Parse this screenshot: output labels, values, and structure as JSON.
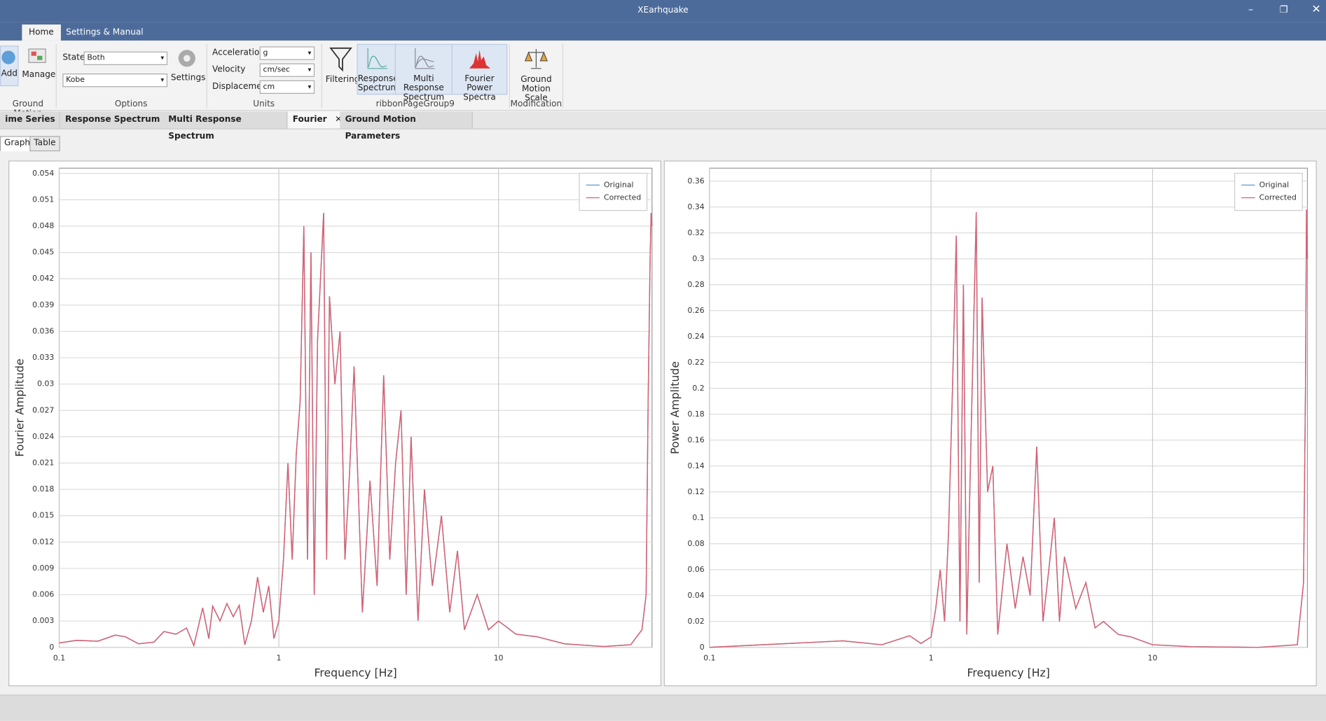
{
  "window": {
    "title": "XEarhquake"
  },
  "ribbon_tabs": [
    "Home",
    "Settings & Manual"
  ],
  "ribbon": {
    "ground_motion": {
      "title": "Ground Motion",
      "add": "Add",
      "manage": "Manage"
    },
    "options": {
      "title": "Options",
      "state_label": "State",
      "state_value": "Both",
      "record": "Kobe",
      "settings": "Settings"
    },
    "units": {
      "title": "Units",
      "acceleration_label": "Acceleration",
      "acceleration": "g",
      "velocity_label": "Velocity",
      "velocity": "cm/sec",
      "displacement_label": "Displacement",
      "displacement": "cm"
    },
    "group9": {
      "title": "ribbonPageGroup9",
      "filtering": "Filtering",
      "response": "Response Spectrum",
      "multi": "Multi Response Spectrum",
      "fourier": "Fourier Power Spectra"
    },
    "modification": {
      "title": "Modification",
      "scale": "Ground Motion Scale"
    }
  },
  "doc_tabs": [
    "ime Series",
    "Response Spectrum",
    "Multi Response Spectrum",
    "Fourier",
    "Ground Motion Parameters"
  ],
  "view_tabs": [
    "Graph",
    "Table"
  ],
  "chart_data": [
    {
      "type": "line",
      "x_label": "Frequency [Hz]",
      "y_label": "Fourier Amplitude",
      "xscale": "log",
      "grid": true,
      "legend": "top-right",
      "xlim": [
        0.1,
        50
      ],
      "xticks": [
        0.1,
        1,
        10
      ],
      "ylim": [
        0,
        0.0546
      ],
      "yticks": [
        0,
        0.003,
        0.006,
        0.009,
        0.012,
        0.015,
        0.018,
        0.021,
        0.024,
        0.027,
        0.03,
        0.033,
        0.036,
        0.039,
        0.042,
        0.045,
        0.048,
        0.051,
        0.054
      ],
      "x": [
        0.1,
        0.12,
        0.15,
        0.18,
        0.2,
        0.23,
        0.27,
        0.3,
        0.34,
        0.38,
        0.41,
        0.45,
        0.48,
        0.5,
        0.54,
        0.58,
        0.62,
        0.66,
        0.7,
        0.75,
        0.8,
        0.85,
        0.9,
        0.95,
        1.0,
        1.05,
        1.1,
        1.15,
        1.2,
        1.25,
        1.3,
        1.35,
        1.4,
        1.45,
        1.5,
        1.6,
        1.65,
        1.7,
        1.8,
        1.9,
        2.0,
        2.1,
        2.2,
        2.4,
        2.6,
        2.8,
        3.0,
        3.2,
        3.4,
        3.6,
        3.8,
        4.0,
        4.3,
        4.6,
        5.0,
        5.5,
        6.0,
        6.5,
        7.0,
        8.0,
        9.0,
        10,
        12,
        15,
        20,
        30,
        40,
        45,
        47,
        48,
        49,
        49.5,
        50
      ],
      "series": [
        {
          "name": "Original",
          "color": "#5b9bd5",
          "values": [
            0.0005,
            0.0008,
            0.0007,
            0.0014,
            0.0012,
            0.0004,
            0.0006,
            0.0018,
            0.0015,
            0.0022,
            0.0002,
            0.0045,
            0.001,
            0.0047,
            0.003,
            0.005,
            0.0035,
            0.0048,
            0.0003,
            0.003,
            0.008,
            0.004,
            0.007,
            0.001,
            0.003,
            0.01,
            0.021,
            0.01,
            0.022,
            0.028,
            0.048,
            0.01,
            0.045,
            0.006,
            0.035,
            0.0495,
            0.01,
            0.04,
            0.03,
            0.036,
            0.01,
            0.02,
            0.032,
            0.004,
            0.019,
            0.007,
            0.031,
            0.01,
            0.021,
            0.027,
            0.006,
            0.024,
            0.003,
            0.018,
            0.007,
            0.015,
            0.004,
            0.011,
            0.002,
            0.006,
            0.002,
            0.003,
            0.0015,
            0.0012,
            0.0004,
            0.0001,
            0.0003,
            0.002,
            0.006,
            0.028,
            0.044,
            0.0495,
            0.048
          ]
        },
        {
          "name": "Corrected",
          "color": "#d9606f",
          "values": [
            0.0005,
            0.0008,
            0.0007,
            0.0014,
            0.0012,
            0.0004,
            0.0006,
            0.0018,
            0.0015,
            0.0022,
            0.0002,
            0.0045,
            0.001,
            0.0047,
            0.003,
            0.005,
            0.0035,
            0.0048,
            0.0003,
            0.003,
            0.008,
            0.004,
            0.007,
            0.001,
            0.003,
            0.01,
            0.021,
            0.01,
            0.022,
            0.028,
            0.048,
            0.01,
            0.045,
            0.006,
            0.035,
            0.0495,
            0.01,
            0.04,
            0.03,
            0.036,
            0.01,
            0.02,
            0.032,
            0.004,
            0.019,
            0.007,
            0.031,
            0.01,
            0.021,
            0.027,
            0.006,
            0.024,
            0.003,
            0.018,
            0.007,
            0.015,
            0.004,
            0.011,
            0.002,
            0.006,
            0.002,
            0.003,
            0.0015,
            0.0012,
            0.0004,
            0.0001,
            0.0003,
            0.002,
            0.006,
            0.028,
            0.044,
            0.0495,
            0.048
          ]
        }
      ]
    },
    {
      "type": "line",
      "x_label": "Frequency [Hz]",
      "y_label": "Power Amplitude",
      "xscale": "log",
      "grid": true,
      "legend": "top-right",
      "xlim": [
        0.1,
        50
      ],
      "xticks": [
        0.1,
        1,
        10
      ],
      "ylim": [
        0,
        0.37
      ],
      "yticks": [
        0,
        0.02,
        0.04,
        0.06,
        0.08,
        0.1,
        0.12,
        0.14,
        0.16,
        0.18,
        0.2,
        0.22,
        0.24,
        0.26,
        0.28,
        0.3,
        0.32,
        0.34,
        0.36
      ],
      "x": [
        0.1,
        0.4,
        0.6,
        0.8,
        0.9,
        1.0,
        1.05,
        1.1,
        1.15,
        1.2,
        1.25,
        1.3,
        1.35,
        1.4,
        1.45,
        1.5,
        1.6,
        1.65,
        1.7,
        1.8,
        1.9,
        2.0,
        2.2,
        2.4,
        2.6,
        2.8,
        3.0,
        3.2,
        3.4,
        3.6,
        3.8,
        4.0,
        4.5,
        5.0,
        5.5,
        6.0,
        7.0,
        8.0,
        10,
        15,
        30,
        45,
        48,
        49,
        49.5,
        50
      ],
      "series": [
        {
          "name": "Original",
          "color": "#5b9bd5",
          "values": [
            0,
            0.005,
            0.002,
            0.009,
            0.003,
            0.008,
            0.03,
            0.06,
            0.02,
            0.09,
            0.2,
            0.318,
            0.02,
            0.28,
            0.01,
            0.13,
            0.336,
            0.05,
            0.27,
            0.12,
            0.14,
            0.01,
            0.08,
            0.03,
            0.07,
            0.04,
            0.155,
            0.02,
            0.06,
            0.1,
            0.02,
            0.07,
            0.03,
            0.05,
            0.015,
            0.02,
            0.01,
            0.008,
            0.002,
            0.0005,
            0,
            0.002,
            0.05,
            0.2,
            0.338,
            0.3
          ]
        },
        {
          "name": "Corrected",
          "color": "#d9606f",
          "values": [
            0,
            0.005,
            0.002,
            0.009,
            0.003,
            0.008,
            0.03,
            0.06,
            0.02,
            0.09,
            0.2,
            0.318,
            0.02,
            0.28,
            0.01,
            0.13,
            0.336,
            0.05,
            0.27,
            0.12,
            0.14,
            0.01,
            0.08,
            0.03,
            0.07,
            0.04,
            0.155,
            0.02,
            0.06,
            0.1,
            0.02,
            0.07,
            0.03,
            0.05,
            0.015,
            0.02,
            0.01,
            0.008,
            0.002,
            0.0005,
            0,
            0.002,
            0.05,
            0.2,
            0.338,
            0.3
          ]
        }
      ]
    }
  ]
}
